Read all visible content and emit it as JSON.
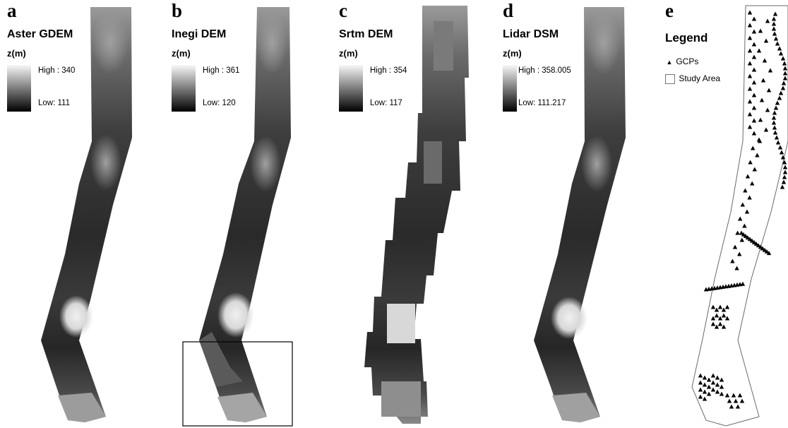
{
  "panels": [
    {
      "label": "a",
      "title": "Aster GDEM",
      "unit": "z(m)",
      "high": "High : 340",
      "low": "Low: 111"
    },
    {
      "label": "b",
      "title": "Inegi DEM",
      "unit": "z(m)",
      "high": "High : 361",
      "low": "Low: 120"
    },
    {
      "label": "c",
      "title": "Srtm DEM",
      "unit": "z(m)",
      "high": "High : 354",
      "low": "Low: 117"
    },
    {
      "label": "d",
      "title": "Lidar DSM",
      "unit": "z(m)",
      "high": "High : 358.005",
      "low": "Low: 111.217"
    }
  ],
  "legend": {
    "label": "e",
    "title": "Legend",
    "gcp_label": "GCPs",
    "study_label": "Study Area",
    "gcp_icon": "triangle-icon",
    "study_icon": "square-outline-icon"
  },
  "colors": {
    "dem_low": "#000000",
    "dem_high": "#f8f8f8",
    "box": "#000000"
  }
}
